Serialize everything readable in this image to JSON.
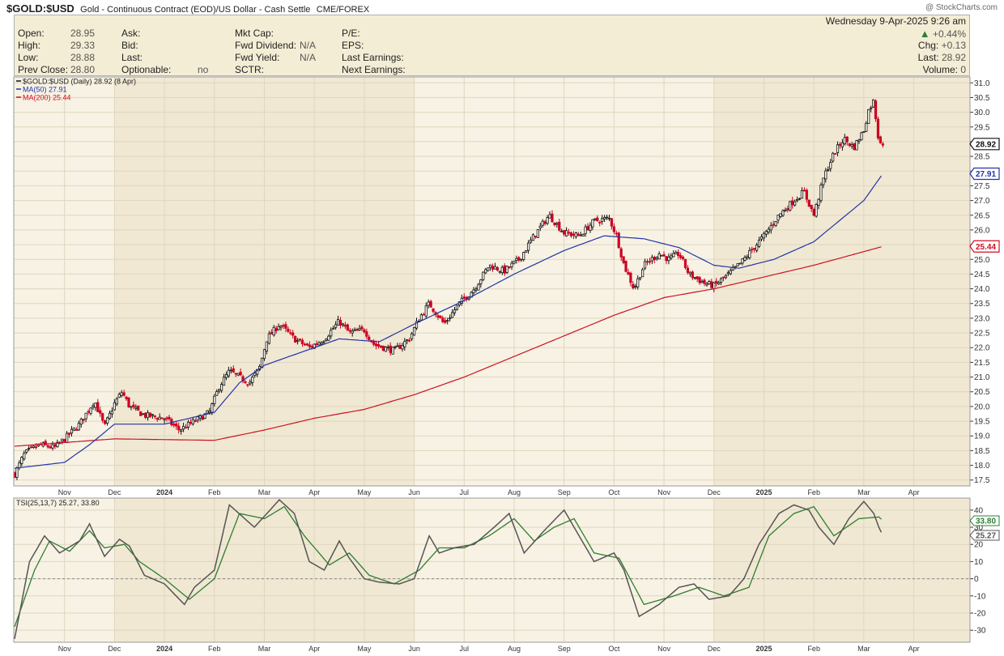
{
  "header": {
    "symbol": "$GOLD:$USD",
    "description": "Gold - Continuous Contract (EOD)/US Dollar - Cash Settle",
    "exchange": "CME/FOREX",
    "watermark": "@ StockCharts.com"
  },
  "quote": {
    "open_label": "Open:",
    "open": "28.95",
    "high_label": "High:",
    "high": "29.33",
    "low_label": "Low:",
    "low": "28.88",
    "prev_label": "Prev Close:",
    "prev": "28.80",
    "ask_label": "Ask:",
    "bid_label": "Bid:",
    "last_label": "Last:",
    "optionable_label": "Optionable:",
    "optionable": "no",
    "mktcap_label": "Mkt Cap:",
    "fwd_div_label": "Fwd Dividend:",
    "fwd_div": "N/A",
    "fwd_yield_label": "Fwd Yield:",
    "fwd_yield": "N/A",
    "sctr_label": "SCTR:",
    "pe_label": "P/E:",
    "eps_label": "EPS:",
    "last_earn_label": "Last Earnings:",
    "next_earn_label": "Next Earnings:",
    "date": "Wednesday  9-Apr-2025  9:26 am",
    "pct_change": "+0.44%",
    "chg_label": "Chg:",
    "chg": "+0.13",
    "last2_label": "Last:",
    "last2": "28.92",
    "volume_label": "Volume:",
    "volume": "0"
  },
  "colors": {
    "up": "#111111",
    "down": "#cc0022",
    "ma50": "#2233aa",
    "ma200": "#cc1122",
    "tsi": "#555555",
    "signal": "#2e7d32",
    "arrow": "#2e7d32"
  },
  "chart_data": [
    {
      "type": "candlestick",
      "legend": [
        "$GOLD:$USD (Daily) 28.92 (8 Apr)",
        "MA(50) 27.91",
        "MA(200) 25.44"
      ],
      "price_tags": [
        "28.92",
        "27.91",
        "25.44"
      ],
      "price_tag_values": [
        28.92,
        27.91,
        25.44
      ],
      "ylim": [
        17.3,
        31.2
      ],
      "yticks": [
        "17.5",
        "18.0",
        "18.5",
        "19.0",
        "19.5",
        "20.0",
        "20.5",
        "21.0",
        "21.5",
        "22.0",
        "22.5",
        "23.0",
        "23.5",
        "24.0",
        "24.5",
        "25.0",
        "25.5",
        "26.0",
        "26.5",
        "27.0",
        "27.5",
        "28.0",
        "28.5",
        "29.0",
        "29.5",
        "30.0",
        "30.5",
        "31.0"
      ],
      "ytick_values": [
        17.5,
        18.0,
        18.5,
        19.0,
        19.5,
        20.0,
        20.5,
        21.0,
        21.5,
        22.0,
        22.5,
        23.0,
        23.5,
        24.0,
        24.5,
        25.0,
        25.5,
        26.0,
        26.5,
        27.0,
        27.5,
        28.0,
        28.5,
        29.0,
        29.5,
        30.0,
        30.5,
        31.0
      ],
      "xlabels": [
        "Nov",
        "Dec",
        "2024",
        "Feb",
        "Mar",
        "Apr",
        "May",
        "Jun",
        "Jul",
        "Aug",
        "Sep",
        "Oct",
        "Nov",
        "Dec",
        "2025",
        "Feb",
        "Mar",
        "Apr"
      ],
      "xlabel_bold": [
        false,
        false,
        true,
        false,
        false,
        false,
        false,
        false,
        false,
        false,
        false,
        false,
        false,
        false,
        true,
        false,
        false,
        false
      ],
      "xlabel_month_index": [
        1,
        2,
        3,
        4,
        5,
        6,
        7,
        8,
        9,
        10,
        11,
        12,
        13,
        14,
        15,
        16,
        17,
        18
      ],
      "month_shading": [
        false,
        false,
        true,
        true,
        true,
        true,
        true,
        true,
        false,
        false,
        false,
        false,
        false,
        false,
        true,
        true,
        true,
        true
      ],
      "close_anchors": [
        [
          0,
          17.7
        ],
        [
          0.2,
          18.4
        ],
        [
          0.5,
          18.7
        ],
        [
          0.8,
          18.6
        ],
        [
          1.0,
          18.9
        ],
        [
          1.3,
          19.4
        ],
        [
          1.6,
          20.2
        ],
        [
          1.8,
          19.3
        ],
        [
          2.0,
          20.1
        ],
        [
          2.15,
          20.5
        ],
        [
          2.3,
          20.0
        ],
        [
          2.6,
          19.7
        ],
        [
          3.0,
          19.6
        ],
        [
          3.3,
          19.2
        ],
        [
          3.6,
          19.5
        ],
        [
          3.9,
          19.8
        ],
        [
          4.1,
          20.7
        ],
        [
          4.3,
          21.2
        ],
        [
          4.7,
          20.8
        ],
        [
          4.9,
          21.3
        ],
        [
          5.05,
          22.3
        ],
        [
          5.3,
          22.8
        ],
        [
          5.6,
          22.3
        ],
        [
          5.9,
          22.0
        ],
        [
          6.2,
          22.3
        ],
        [
          6.5,
          22.9
        ],
        [
          6.7,
          22.5
        ],
        [
          7.0,
          22.6
        ],
        [
          7.2,
          22.1
        ],
        [
          7.6,
          21.9
        ],
        [
          7.9,
          22.3
        ],
        [
          8.1,
          23.0
        ],
        [
          8.3,
          23.5
        ],
        [
          8.6,
          22.8
        ],
        [
          8.9,
          23.5
        ],
        [
          9.2,
          24.0
        ],
        [
          9.5,
          24.8
        ],
        [
          9.8,
          24.6
        ],
        [
          10.1,
          25.0
        ],
        [
          10.4,
          25.8
        ],
        [
          10.7,
          26.5
        ],
        [
          11.0,
          25.9
        ],
        [
          11.3,
          25.8
        ],
        [
          11.6,
          26.3
        ],
        [
          11.9,
          26.4
        ],
        [
          12.05,
          25.8
        ],
        [
          12.2,
          24.8
        ],
        [
          12.4,
          24.0
        ],
        [
          12.6,
          24.8
        ],
        [
          12.9,
          25.2
        ],
        [
          13.1,
          25.0
        ],
        [
          13.3,
          25.2
        ],
        [
          13.5,
          24.5
        ],
        [
          13.8,
          24.2
        ],
        [
          14.0,
          24.1
        ],
        [
          14.3,
          24.5
        ],
        [
          14.55,
          24.9
        ],
        [
          14.8,
          25.4
        ],
        [
          15.0,
          25.8
        ],
        [
          15.3,
          26.5
        ],
        [
          15.6,
          27.0
        ],
        [
          15.8,
          27.3
        ],
        [
          16.0,
          26.5
        ],
        [
          16.2,
          27.8
        ],
        [
          16.4,
          28.6
        ],
        [
          16.6,
          29.1
        ],
        [
          16.8,
          28.8
        ],
        [
          17.0,
          29.4
        ],
        [
          17.1,
          30.1
        ],
        [
          17.2,
          30.4
        ],
        [
          17.28,
          29.2
        ],
        [
          17.38,
          28.92
        ]
      ],
      "ma50_anchors": [
        [
          0,
          17.9
        ],
        [
          1.0,
          18.1
        ],
        [
          1.5,
          18.7
        ],
        [
          2.0,
          19.4
        ],
        [
          3.0,
          19.4
        ],
        [
          4.0,
          19.8
        ],
        [
          4.5,
          20.8
        ],
        [
          5.0,
          21.4
        ],
        [
          6.0,
          22.0
        ],
        [
          6.5,
          22.3
        ],
        [
          7.3,
          22.2
        ],
        [
          8.0,
          22.8
        ],
        [
          9.0,
          23.6
        ],
        [
          10.0,
          24.5
        ],
        [
          11.0,
          25.3
        ],
        [
          11.8,
          25.8
        ],
        [
          12.6,
          25.7
        ],
        [
          13.3,
          25.4
        ],
        [
          14.0,
          24.8
        ],
        [
          14.5,
          24.7
        ],
        [
          15.2,
          25.0
        ],
        [
          16.0,
          25.6
        ],
        [
          16.5,
          26.3
        ],
        [
          17.0,
          27.0
        ],
        [
          17.38,
          27.91
        ]
      ],
      "ma200_anchors": [
        [
          0,
          18.65
        ],
        [
          2.0,
          18.9
        ],
        [
          4.0,
          18.85
        ],
        [
          5.0,
          19.2
        ],
        [
          6.0,
          19.6
        ],
        [
          7.0,
          19.9
        ],
        [
          8.0,
          20.4
        ],
        [
          9.0,
          21.0
        ],
        [
          10.0,
          21.7
        ],
        [
          11.0,
          22.4
        ],
        [
          12.0,
          23.1
        ],
        [
          13.0,
          23.7
        ],
        [
          14.0,
          24.0
        ],
        [
          15.0,
          24.4
        ],
        [
          16.0,
          24.8
        ],
        [
          17.38,
          25.44
        ]
      ]
    },
    {
      "type": "line",
      "legend": "TSI(25,13,7) 25.27, 33.80",
      "value_tags": [
        "33.80",
        "25.27"
      ],
      "value_tag_values": [
        33.8,
        25.27
      ],
      "ylim": [
        -37,
        47
      ],
      "yticks": [
        "40",
        "30",
        "20",
        "10",
        "0",
        "-10",
        "-20",
        "-30"
      ],
      "ytick_values": [
        40,
        30,
        20,
        10,
        0,
        -10,
        -20,
        -30
      ],
      "zero_line": true,
      "tsi_anchors": [
        [
          0,
          -35
        ],
        [
          0.3,
          10
        ],
        [
          0.6,
          25
        ],
        [
          0.9,
          15
        ],
        [
          1.3,
          22
        ],
        [
          1.5,
          32
        ],
        [
          1.8,
          13
        ],
        [
          2.1,
          23
        ],
        [
          2.3,
          19
        ],
        [
          2.6,
          2
        ],
        [
          3.0,
          -3
        ],
        [
          3.4,
          -15
        ],
        [
          3.6,
          -5
        ],
        [
          4.0,
          5
        ],
        [
          4.3,
          43
        ],
        [
          4.8,
          30
        ],
        [
          5.3,
          46
        ],
        [
          5.6,
          38
        ],
        [
          5.9,
          10
        ],
        [
          6.2,
          5
        ],
        [
          6.5,
          22
        ],
        [
          6.7,
          12
        ],
        [
          7.0,
          0
        ],
        [
          7.3,
          -2
        ],
        [
          7.7,
          -3
        ],
        [
          8.0,
          0
        ],
        [
          8.3,
          25
        ],
        [
          8.5,
          15
        ],
        [
          8.8,
          18
        ],
        [
          9.2,
          20
        ],
        [
          9.6,
          30
        ],
        [
          9.9,
          38
        ],
        [
          10.2,
          15
        ],
        [
          10.6,
          28
        ],
        [
          11.0,
          40
        ],
        [
          11.3,
          25
        ],
        [
          11.6,
          10
        ],
        [
          12.0,
          15
        ],
        [
          12.2,
          5
        ],
        [
          12.5,
          -22
        ],
        [
          12.9,
          -15
        ],
        [
          13.3,
          -5
        ],
        [
          13.6,
          -3
        ],
        [
          13.9,
          -12
        ],
        [
          14.3,
          -10
        ],
        [
          14.6,
          0
        ],
        [
          14.9,
          20
        ],
        [
          15.3,
          38
        ],
        [
          15.6,
          43
        ],
        [
          15.9,
          40
        ],
        [
          16.1,
          30
        ],
        [
          16.4,
          20
        ],
        [
          16.7,
          35
        ],
        [
          17.0,
          45
        ],
        [
          17.2,
          38
        ],
        [
          17.3,
          30
        ],
        [
          17.38,
          25.27
        ]
      ],
      "signal_anchors": [
        [
          0,
          -28
        ],
        [
          0.4,
          5
        ],
        [
          0.7,
          22
        ],
        [
          1.1,
          16
        ],
        [
          1.5,
          28
        ],
        [
          1.8,
          18
        ],
        [
          2.2,
          20
        ],
        [
          2.5,
          10
        ],
        [
          3.0,
          0
        ],
        [
          3.5,
          -12
        ],
        [
          4.0,
          0
        ],
        [
          4.5,
          38
        ],
        [
          5.0,
          35
        ],
        [
          5.4,
          42
        ],
        [
          5.8,
          25
        ],
        [
          6.3,
          8
        ],
        [
          6.7,
          15
        ],
        [
          7.1,
          2
        ],
        [
          7.6,
          -3
        ],
        [
          8.1,
          5
        ],
        [
          8.5,
          18
        ],
        [
          9.0,
          18
        ],
        [
          9.5,
          25
        ],
        [
          10.0,
          35
        ],
        [
          10.4,
          22
        ],
        [
          10.8,
          30
        ],
        [
          11.2,
          35
        ],
        [
          11.6,
          15
        ],
        [
          12.1,
          12
        ],
        [
          12.6,
          -15
        ],
        [
          13.2,
          -10
        ],
        [
          13.7,
          -5
        ],
        [
          14.2,
          -10
        ],
        [
          14.7,
          -5
        ],
        [
          15.1,
          25
        ],
        [
          15.6,
          38
        ],
        [
          16.0,
          42
        ],
        [
          16.4,
          25
        ],
        [
          16.9,
          35
        ],
        [
          17.3,
          36
        ],
        [
          17.38,
          33.8
        ]
      ]
    }
  ]
}
